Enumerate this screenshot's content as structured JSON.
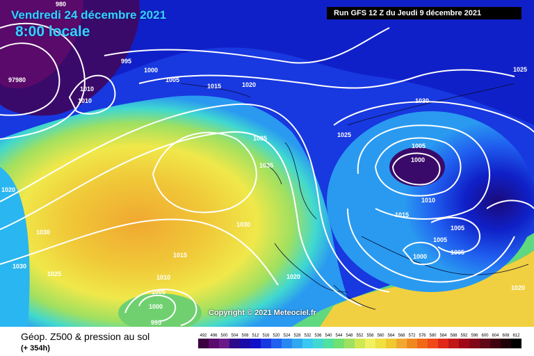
{
  "header": {
    "date": "Vendredi 24 décembre 2021",
    "time": "8:00 locale",
    "run": "Run GFS 12 Z du Jeudi 9 décembre 2021"
  },
  "copyright": "Copyright © 2021 Meteociel.fr",
  "footer": {
    "title": "Géop. Z500 & pression au sol",
    "subtitle": "(+ 354h)"
  },
  "colors": {
    "deep_purple": "#5a0a6a",
    "navy": "#0a1a8a",
    "blue": "#1a3ae6",
    "cyan": "#2ab6f0",
    "green": "#7ad86a",
    "yellow": "#f2e84a",
    "orange": "#f0a830",
    "isobar": "#ffffff"
  },
  "scale": {
    "values": [
      "492",
      "496",
      "500",
      "504",
      "508",
      "512",
      "516",
      "520",
      "524",
      "528",
      "532",
      "536",
      "540",
      "544",
      "548",
      "552",
      "556",
      "560",
      "564",
      "568",
      "572",
      "576",
      "580",
      "584",
      "588",
      "592",
      "596",
      "600",
      "604",
      "608",
      "612"
    ],
    "colors": [
      "#3a0040",
      "#5a0a6a",
      "#6a1a8a",
      "#2a0a8a",
      "#1a0aa8",
      "#1010c8",
      "#1838e0",
      "#2060f0",
      "#2888f0",
      "#30a8f0",
      "#38c8f0",
      "#40d8d0",
      "#50e0a0",
      "#70e070",
      "#a0e060",
      "#d0e850",
      "#f0f060",
      "#f0e040",
      "#f0c830",
      "#f0a830",
      "#f08820",
      "#f06818",
      "#f04818",
      "#e02818",
      "#c01818",
      "#a00818",
      "#800818",
      "#600818",
      "#400010",
      "#200008",
      "#000000"
    ]
  },
  "isobar_labels": [
    "980",
    "995",
    "97980",
    "1000",
    "1005",
    "1010",
    "1010",
    "1015",
    "1020",
    "1025",
    "1030",
    "1035",
    "1035",
    "1030",
    "1025",
    "1030",
    "1000",
    "1005",
    "1010",
    "1015",
    "1005",
    "1005",
    "1000",
    "1005",
    "1020",
    "1020",
    "1015",
    "1010",
    "1005",
    "1000",
    "995",
    "1020",
    "1025",
    "1030"
  ]
}
